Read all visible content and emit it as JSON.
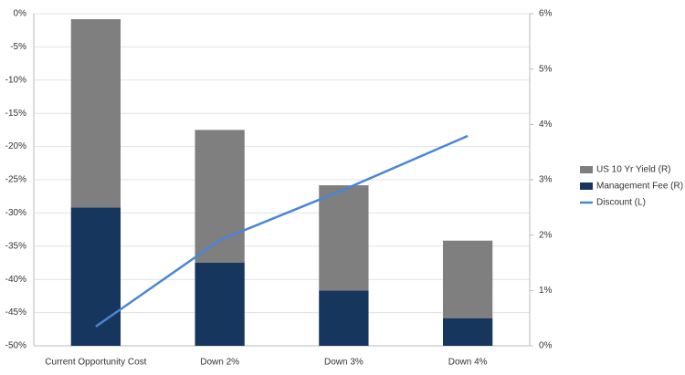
{
  "chart_data": {
    "type": "bar",
    "stacked": true,
    "categories": [
      "Current Opportunity Cost",
      "Down 2%",
      "Down 3%",
      "Down 4%"
    ],
    "series": [
      {
        "name": "Management Fee (R)",
        "color": "#17365d",
        "axis": "y2",
        "values": [
          2.5,
          1.5,
          1.0,
          0.5
        ]
      },
      {
        "name": "US 10 Yr Yield  (R)",
        "color": "#7f7f7f",
        "axis": "y2",
        "values": [
          3.4,
          2.4,
          1.9,
          1.4
        ]
      },
      {
        "name": "Discount (L)",
        "color": "#4a86d4",
        "type": "line",
        "values": [
          -47.1,
          -34.1,
          -26.5,
          -18.4
        ]
      }
    ],
    "ylim": [
      -50,
      0
    ],
    "yticks": [
      {
        "value": 0,
        "label": "0%"
      },
      {
        "value": -5,
        "label": "-5%"
      },
      {
        "value": -10,
        "label": "-10%"
      },
      {
        "value": -15,
        "label": "-15%"
      },
      {
        "value": -20,
        "label": "-20%"
      },
      {
        "value": -25,
        "label": "-25%"
      },
      {
        "value": -30,
        "label": "-30%"
      },
      {
        "value": -35,
        "label": "-35%"
      },
      {
        "value": -40,
        "label": "-40%"
      },
      {
        "value": -45,
        "label": "-45%"
      },
      {
        "value": -50,
        "label": "-50%"
      }
    ],
    "y2lim": [
      0,
      6
    ],
    "y2ticks": [
      {
        "value": 0,
        "label": "0%"
      },
      {
        "value": 1,
        "label": "1%"
      },
      {
        "value": 2,
        "label": "2%"
      },
      {
        "value": 3,
        "label": "3%"
      },
      {
        "value": 4,
        "label": "4%"
      },
      {
        "value": 5,
        "label": "5%"
      },
      {
        "value": 6,
        "label": "6%"
      }
    ],
    "grid": true,
    "legend": "right"
  }
}
